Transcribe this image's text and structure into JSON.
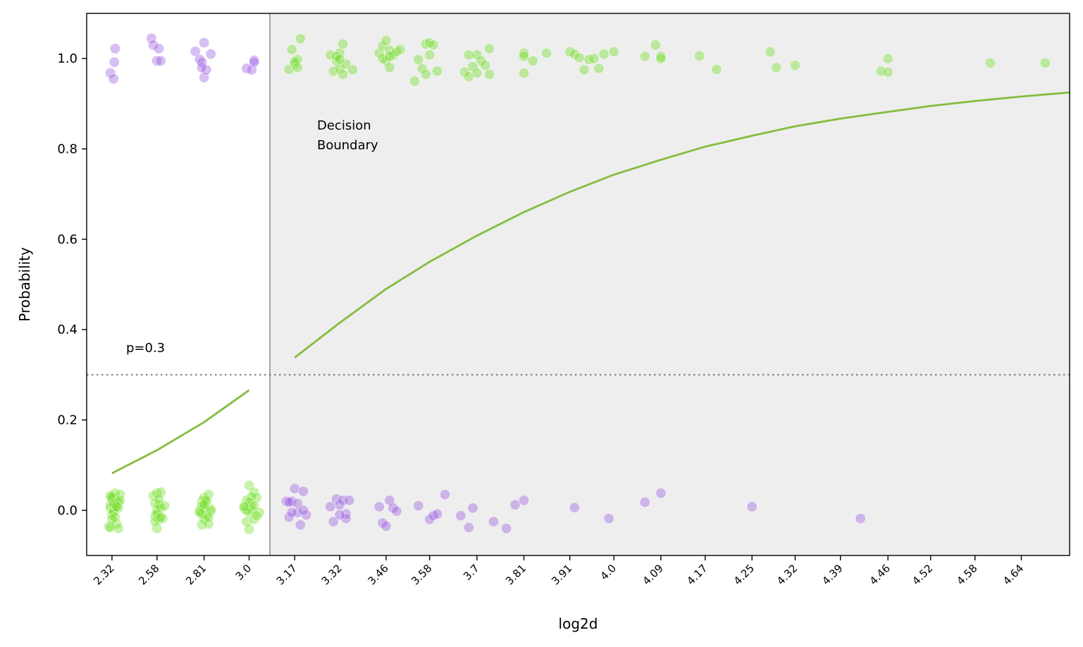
{
  "chart_data": {
    "type": "scatter",
    "title": "",
    "xlabel": "log2d",
    "ylabel": "Probability",
    "ylim": [
      -0.1,
      1.1
    ],
    "yticks": [
      0.0,
      0.2,
      0.4,
      0.6,
      0.8,
      1.0
    ],
    "yticklabels": [
      "0.0",
      "0.2",
      "0.4",
      "0.6",
      "0.8",
      "1.0"
    ],
    "x_scale": "log2",
    "xlim": [
      2.15,
      4.7
    ],
    "xticks": [
      2.32,
      2.58,
      2.81,
      3.0,
      3.17,
      3.32,
      3.46,
      3.58,
      3.7,
      3.81,
      3.91,
      4.0,
      4.09,
      4.17,
      4.25,
      4.32,
      4.39,
      4.46,
      4.52,
      4.58,
      4.64
    ],
    "xticklabels": [
      "2.32",
      "2.58",
      "2.81",
      "3.0",
      "3.17",
      "3.32",
      "3.46",
      "3.58",
      "3.7",
      "3.81",
      "3.91",
      "4.0",
      "4.09",
      "4.17",
      "4.25",
      "4.32",
      "4.39",
      "4.46",
      "4.52",
      "4.58",
      "4.64"
    ],
    "grid": false,
    "threshold": {
      "value": 0.3,
      "label": "p=0.3",
      "style": "dotted",
      "color": "#808080"
    },
    "decision_boundary": {
      "x": 3.08,
      "label_line1": "Decision",
      "label_line2": "Boundary",
      "color": "#808080",
      "shaded_region_color": "#eeeeee"
    },
    "fit_curve": {
      "color": "#86bc3e",
      "segments": [
        {
          "x": [
            2.32,
            2.58,
            2.81,
            3.0
          ],
          "y": [
            0.082,
            0.133,
            0.195,
            0.266
          ]
        },
        {
          "x": [
            3.17,
            3.32,
            3.46,
            3.58,
            3.7,
            3.81,
            3.91,
            4.0,
            4.09,
            4.17,
            4.25,
            4.32,
            4.39,
            4.46,
            4.52,
            4.58,
            4.64,
            4.7
          ],
          "y": [
            0.338,
            0.415,
            0.49,
            0.55,
            0.608,
            0.66,
            0.705,
            0.743,
            0.776,
            0.805,
            0.829,
            0.85,
            0.867,
            0.882,
            0.895,
            0.906,
            0.916,
            0.925
          ]
        }
      ]
    },
    "series": [
      {
        "color": "#6bdc1c",
        "points": [
          [
            2.3,
            -0.036
          ],
          [
            2.31,
            0.012
          ],
          [
            2.32,
            0.022
          ],
          [
            2.31,
            0.005
          ],
          [
            2.33,
            0.03
          ],
          [
            2.32,
            -0.01
          ],
          [
            2.34,
            0.038
          ],
          [
            2.33,
            0.0
          ],
          [
            2.35,
            -0.03
          ],
          [
            2.36,
            0.018
          ],
          [
            2.37,
            0.035
          ],
          [
            2.34,
            0.01
          ],
          [
            2.33,
            -0.005
          ],
          [
            2.35,
            0.02
          ],
          [
            2.36,
            -0.04
          ],
          [
            2.32,
            0.028
          ],
          [
            2.31,
            -0.038
          ],
          [
            2.34,
            -0.015
          ],
          [
            2.33,
            0.015
          ],
          [
            2.36,
            0.005
          ],
          [
            2.37,
            0.022
          ],
          [
            2.35,
            0.008
          ],
          [
            2.32,
            -0.02
          ],
          [
            2.31,
            0.032
          ],
          [
            2.57,
            -0.012
          ],
          [
            2.56,
            0.032
          ],
          [
            2.58,
            0.038
          ],
          [
            2.59,
            -0.02
          ],
          [
            2.6,
            0.04
          ],
          [
            2.57,
            0.015
          ],
          [
            2.58,
            0.0
          ],
          [
            2.59,
            0.012
          ],
          [
            2.61,
            -0.018
          ],
          [
            2.58,
            -0.04
          ],
          [
            2.6,
            0.005
          ],
          [
            2.57,
            -0.025
          ],
          [
            2.62,
            0.01
          ],
          [
            2.59,
            0.025
          ],
          [
            2.58,
            -0.008
          ],
          [
            2.6,
            -0.015
          ],
          [
            2.79,
            0.0
          ],
          [
            2.8,
            0.02
          ],
          [
            2.81,
            0.028
          ],
          [
            2.82,
            -0.012
          ],
          [
            2.8,
            -0.032
          ],
          [
            2.81,
            0.005
          ],
          [
            2.83,
            0.035
          ],
          [
            2.82,
            0.018
          ],
          [
            2.8,
            0.01
          ],
          [
            2.81,
            -0.02
          ],
          [
            2.84,
            -0.002
          ],
          [
            2.83,
            -0.03
          ],
          [
            2.82,
            0.022
          ],
          [
            2.8,
            -0.008
          ],
          [
            2.84,
            0.002
          ],
          [
            2.81,
            0.012
          ],
          [
            2.79,
            -0.004
          ],
          [
            2.83,
            -0.015
          ],
          [
            2.98,
            0.005
          ],
          [
            2.99,
            -0.025
          ],
          [
            3.0,
            0.055
          ],
          [
            3.01,
            0.012
          ],
          [
            3.0,
            -0.005
          ],
          [
            3.02,
            0.04
          ],
          [
            2.99,
            0.022
          ],
          [
            3.01,
            0.0
          ],
          [
            3.03,
            0.028
          ],
          [
            3.0,
            -0.042
          ],
          [
            3.02,
            -0.02
          ],
          [
            3.04,
            -0.005
          ],
          [
            3.01,
            0.03
          ],
          [
            2.99,
            0.0
          ],
          [
            3.0,
            0.018
          ],
          [
            3.02,
            0.01
          ],
          [
            3.03,
            -0.012
          ],
          [
            2.98,
            0.008
          ],
          [
            3.15,
            0.976
          ],
          [
            3.16,
            1.02
          ],
          [
            3.17,
            0.988
          ],
          [
            3.18,
            0.998
          ],
          [
            3.19,
            1.044
          ],
          [
            3.17,
            0.993
          ],
          [
            3.18,
            0.98
          ],
          [
            3.29,
            1.008
          ],
          [
            3.31,
            0.995
          ],
          [
            3.3,
            0.972
          ],
          [
            3.32,
            1.012
          ],
          [
            3.33,
            1.032
          ],
          [
            3.31,
            1.005
          ],
          [
            3.32,
            0.978
          ],
          [
            3.34,
            0.988
          ],
          [
            3.33,
            0.965
          ],
          [
            3.36,
            0.975
          ],
          [
            3.32,
            0.998
          ],
          [
            3.44,
            1.012
          ],
          [
            3.45,
            1.028
          ],
          [
            3.46,
            1.04
          ],
          [
            3.47,
            1.018
          ],
          [
            3.46,
            0.995
          ],
          [
            3.47,
            0.98
          ],
          [
            3.48,
            1.008
          ],
          [
            3.49,
            1.015
          ],
          [
            3.45,
            1.0
          ],
          [
            3.47,
            1.005
          ],
          [
            3.5,
            1.02
          ],
          [
            3.54,
            0.95
          ],
          [
            3.55,
            0.998
          ],
          [
            3.56,
            0.978
          ],
          [
            3.57,
            1.032
          ],
          [
            3.58,
            1.008
          ],
          [
            3.58,
            1.035
          ],
          [
            3.59,
            1.03
          ],
          [
            3.6,
            0.972
          ],
          [
            3.57,
            0.965
          ],
          [
            3.67,
            0.97
          ],
          [
            3.68,
            0.96
          ],
          [
            3.69,
            0.982
          ],
          [
            3.7,
            1.008
          ],
          [
            3.7,
            0.968
          ],
          [
            3.71,
            0.995
          ],
          [
            3.72,
            0.985
          ],
          [
            3.73,
            1.022
          ],
          [
            3.73,
            0.965
          ],
          [
            3.68,
            1.008
          ],
          [
            3.81,
            1.012
          ],
          [
            3.81,
            0.968
          ],
          [
            3.81,
            1.005
          ],
          [
            3.83,
            0.995
          ],
          [
            3.86,
            1.012
          ],
          [
            3.91,
            1.015
          ],
          [
            3.92,
            1.01
          ],
          [
            3.93,
            1.002
          ],
          [
            3.94,
            0.975
          ],
          [
            3.95,
            0.998
          ],
          [
            3.96,
            1.0
          ],
          [
            3.97,
            0.978
          ],
          [
            3.98,
            1.01
          ],
          [
            4.0,
            1.015
          ],
          [
            4.06,
            1.005
          ],
          [
            4.08,
            1.03
          ],
          [
            4.09,
            1.005
          ],
          [
            4.09,
            1.0
          ],
          [
            4.16,
            1.006
          ],
          [
            4.19,
            0.976
          ],
          [
            4.28,
            1.015
          ],
          [
            4.29,
            0.98
          ],
          [
            4.32,
            0.985
          ],
          [
            4.45,
            0.972
          ],
          [
            4.46,
            1.0
          ],
          [
            4.46,
            0.97
          ],
          [
            4.6,
            0.99
          ],
          [
            4.67,
            0.99
          ]
        ]
      },
      {
        "color": "#9655e0",
        "points": [
          [
            2.31,
            0.968
          ],
          [
            2.33,
            0.955
          ],
          [
            2.335,
            0.992
          ],
          [
            2.34,
            1.022
          ],
          [
            2.55,
            1.045
          ],
          [
            2.56,
            1.03
          ],
          [
            2.58,
            0.995
          ],
          [
            2.59,
            1.022
          ],
          [
            2.6,
            0.995
          ],
          [
            2.77,
            1.016
          ],
          [
            2.79,
            0.998
          ],
          [
            2.8,
            0.992
          ],
          [
            2.81,
            0.958
          ],
          [
            2.82,
            0.975
          ],
          [
            2.81,
            1.035
          ],
          [
            2.84,
            1.01
          ],
          [
            2.8,
            0.98
          ],
          [
            2.99,
            0.978
          ],
          [
            3.01,
            0.975
          ],
          [
            3.02,
            0.996
          ],
          [
            3.02,
            0.992
          ],
          [
            3.14,
            0.02
          ],
          [
            3.15,
            -0.015
          ],
          [
            3.16,
            0.02
          ],
          [
            3.17,
            0.048
          ],
          [
            3.18,
            -0.005
          ],
          [
            3.19,
            -0.032
          ],
          [
            3.2,
            0.042
          ],
          [
            3.21,
            -0.01
          ],
          [
            3.16,
            -0.005
          ],
          [
            3.18,
            0.015
          ],
          [
            3.15,
            0.018
          ],
          [
            3.2,
            0.0
          ],
          [
            3.29,
            0.008
          ],
          [
            3.3,
            -0.025
          ],
          [
            3.31,
            0.025
          ],
          [
            3.32,
            0.012
          ],
          [
            3.33,
            0.022
          ],
          [
            3.34,
            -0.008
          ],
          [
            3.34,
            -0.018
          ],
          [
            3.35,
            0.022
          ],
          [
            3.32,
            -0.01
          ],
          [
            3.44,
            0.008
          ],
          [
            3.45,
            -0.028
          ],
          [
            3.46,
            -0.035
          ],
          [
            3.47,
            0.022
          ],
          [
            3.48,
            0.005
          ],
          [
            3.49,
            -0.002
          ],
          [
            3.55,
            0.01
          ],
          [
            3.58,
            -0.02
          ],
          [
            3.59,
            -0.012
          ],
          [
            3.6,
            -0.008
          ],
          [
            3.62,
            0.035
          ],
          [
            3.66,
            -0.012
          ],
          [
            3.68,
            -0.038
          ],
          [
            3.69,
            0.005
          ],
          [
            3.74,
            -0.025
          ],
          [
            3.77,
            -0.04
          ],
          [
            3.79,
            0.012
          ],
          [
            3.81,
            0.022
          ],
          [
            3.92,
            0.006
          ],
          [
            3.99,
            -0.018
          ],
          [
            4.06,
            0.018
          ],
          [
            4.09,
            0.038
          ],
          [
            4.25,
            0.008
          ],
          [
            4.42,
            -0.018
          ]
        ]
      }
    ]
  }
}
